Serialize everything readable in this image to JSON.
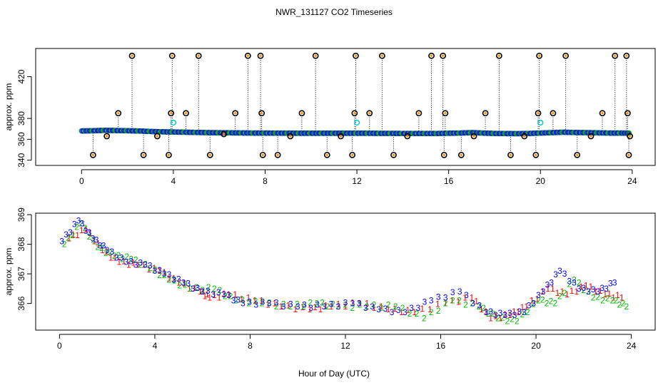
{
  "title": "NWR_131127  CO2 Timeseries",
  "xlabel": "Hour of Day (UTC)",
  "chart_data": [
    {
      "type": "scatter",
      "ylabel": "approx. ppm",
      "xlim": [
        -2,
        25
      ],
      "ylim": [
        335,
        447
      ],
      "xticks": [
        0,
        4,
        8,
        12,
        16,
        20,
        24
      ],
      "yticks": [
        340,
        360,
        380,
        420
      ],
      "baseline": {
        "x": [
          0,
          0.5,
          1,
          1.5,
          2,
          2.5,
          3,
          3.5,
          4,
          4.5,
          5,
          5.5,
          6,
          6.5,
          7,
          7.5,
          8,
          8.5,
          9,
          9.5,
          10,
          10.5,
          11,
          11.5,
          12,
          12.5,
          13,
          13.5,
          14,
          14.5,
          15,
          15.5,
          16,
          16.5,
          17,
          17.5,
          18,
          18.5,
          19,
          19.5,
          20,
          20.5,
          21,
          21.5,
          22,
          22.5,
          23,
          23.5,
          23.9
        ],
        "y": [
          368,
          368.2,
          368.6,
          368.4,
          368.2,
          368,
          367.5,
          367.2,
          367,
          366.8,
          366.6,
          366.4,
          366.3,
          366.2,
          366.1,
          366,
          366,
          365.9,
          365.9,
          365.8,
          365.8,
          365.8,
          365.8,
          365.8,
          365.8,
          365.8,
          365.7,
          365.7,
          365.6,
          365.6,
          365.6,
          365.6,
          365.8,
          366,
          366.4,
          366,
          365.6,
          365.5,
          365.4,
          365.6,
          366,
          366.4,
          366.8,
          366.5,
          366.4,
          366.2,
          366,
          366,
          365.9
        ]
      },
      "outliers": [
        {
          "x": 0.5,
          "y": 345
        },
        {
          "x": 1.1,
          "y": 363
        },
        {
          "x": 1.6,
          "y": 385
        },
        {
          "x": 2.2,
          "y": 440
        },
        {
          "x": 2.7,
          "y": 345
        },
        {
          "x": 3.3,
          "y": 363
        },
        {
          "x": 3.8,
          "y": 345
        },
        {
          "x": 3.9,
          "y": 385
        },
        {
          "x": 3.95,
          "y": 440
        },
        {
          "x": 4.55,
          "y": 385
        },
        {
          "x": 5.1,
          "y": 440
        },
        {
          "x": 5.6,
          "y": 345
        },
        {
          "x": 6.2,
          "y": 365
        },
        {
          "x": 6.7,
          "y": 385
        },
        {
          "x": 7.25,
          "y": 440
        },
        {
          "x": 7.8,
          "y": 440
        },
        {
          "x": 7.85,
          "y": 385
        },
        {
          "x": 7.9,
          "y": 345
        },
        {
          "x": 8.55,
          "y": 345
        },
        {
          "x": 9.1,
          "y": 363
        },
        {
          "x": 9.6,
          "y": 385
        },
        {
          "x": 10.2,
          "y": 440
        },
        {
          "x": 10.7,
          "y": 345
        },
        {
          "x": 11.3,
          "y": 363
        },
        {
          "x": 11.8,
          "y": 345
        },
        {
          "x": 11.9,
          "y": 385
        },
        {
          "x": 11.95,
          "y": 440
        },
        {
          "x": 12.55,
          "y": 385
        },
        {
          "x": 13.1,
          "y": 440
        },
        {
          "x": 13.6,
          "y": 345
        },
        {
          "x": 14.2,
          "y": 363
        },
        {
          "x": 14.7,
          "y": 385
        },
        {
          "x": 15.25,
          "y": 440
        },
        {
          "x": 15.75,
          "y": 440
        },
        {
          "x": 15.8,
          "y": 345
        },
        {
          "x": 15.85,
          "y": 385
        },
        {
          "x": 16.55,
          "y": 345
        },
        {
          "x": 17.1,
          "y": 363
        },
        {
          "x": 17.6,
          "y": 385
        },
        {
          "x": 18.2,
          "y": 440
        },
        {
          "x": 18.7,
          "y": 345
        },
        {
          "x": 19.3,
          "y": 363
        },
        {
          "x": 19.8,
          "y": 345
        },
        {
          "x": 19.9,
          "y": 385
        },
        {
          "x": 19.95,
          "y": 440
        },
        {
          "x": 20.55,
          "y": 385
        },
        {
          "x": 21.1,
          "y": 440
        },
        {
          "x": 21.6,
          "y": 345
        },
        {
          "x": 22.2,
          "y": 363
        },
        {
          "x": 22.7,
          "y": 385
        },
        {
          "x": 23.25,
          "y": 440
        },
        {
          "x": 23.75,
          "y": 440
        },
        {
          "x": 23.8,
          "y": 385
        },
        {
          "x": 23.85,
          "y": 345
        },
        {
          "x": 23.9,
          "y": 363
        }
      ],
      "highlights": [
        {
          "x": 4.0,
          "y": 376
        },
        {
          "x": 12.0,
          "y": 376
        },
        {
          "x": 20.0,
          "y": 376
        }
      ]
    },
    {
      "type": "scatter",
      "ylabel": "approx. ppm",
      "xlim": [
        -1,
        25
      ],
      "ylim": [
        365.1,
        369.05
      ],
      "xticks": [
        0,
        4,
        8,
        12,
        16,
        20,
        24
      ],
      "yticks": [
        366,
        367,
        368,
        369
      ],
      "series": [
        {
          "label": "1",
          "x": [
            0.4,
            1.1,
            1.8,
            2.5,
            3.3,
            4.2,
            5.0,
            5.9,
            6.3,
            7.1,
            8.2,
            9.3,
            10.5,
            11.4,
            12.6,
            13.8,
            14.9,
            16.2,
            17.3,
            18.1,
            18.9,
            19.6,
            20.5,
            21.3,
            22.1,
            22.9,
            23.6
          ],
          "y": [
            368.2,
            368.5,
            367.8,
            367.4,
            367.3,
            367.1,
            366.7,
            366.4,
            366.2,
            366.3,
            366.1,
            365.9,
            365.8,
            365.9,
            366.0,
            365.8,
            365.7,
            366.0,
            366.2,
            365.5,
            365.6,
            365.9,
            366.5,
            366.3,
            366.6,
            366.3,
            366.2
          ]
        },
        {
          "label": "2",
          "x": [
            0.2,
            0.9,
            1.6,
            2.3,
            3.0,
            3.8,
            4.6,
            5.5,
            6.5,
            7.4,
            8.5,
            9.7,
            10.8,
            11.7,
            12.9,
            14.1,
            15.3,
            16.5,
            17.6,
            18.4,
            19.2,
            20.1,
            20.8,
            21.6,
            22.4,
            23.2,
            23.8
          ],
          "y": [
            368.0,
            368.7,
            367.9,
            367.6,
            367.5,
            367.2,
            366.8,
            366.5,
            366.5,
            366.1,
            366.0,
            365.9,
            366.0,
            365.9,
            365.9,
            365.9,
            365.5,
            366.1,
            365.9,
            365.5,
            365.4,
            366.1,
            366.0,
            366.8,
            366.2,
            366.1,
            365.9
          ]
        },
        {
          "label": "3",
          "x": [
            0.1,
            0.8,
            1.4,
            2.0,
            2.8,
            3.6,
            4.4,
            5.2,
            6.0,
            6.9,
            7.7,
            8.8,
            10.0,
            11.1,
            12.3,
            13.4,
            14.5,
            15.6,
            16.8,
            17.9,
            18.7,
            19.5,
            20.3,
            21.0,
            21.8,
            22.6,
            23.3
          ],
          "y": [
            368.1,
            368.8,
            368.2,
            367.8,
            367.4,
            367.3,
            367.0,
            366.7,
            366.4,
            366.3,
            366.0,
            366.0,
            365.9,
            365.9,
            366.0,
            365.8,
            365.7,
            366.1,
            366.4,
            365.7,
            365.6,
            365.7,
            366.4,
            367.1,
            366.5,
            366.4,
            366.7
          ]
        }
      ]
    }
  ]
}
